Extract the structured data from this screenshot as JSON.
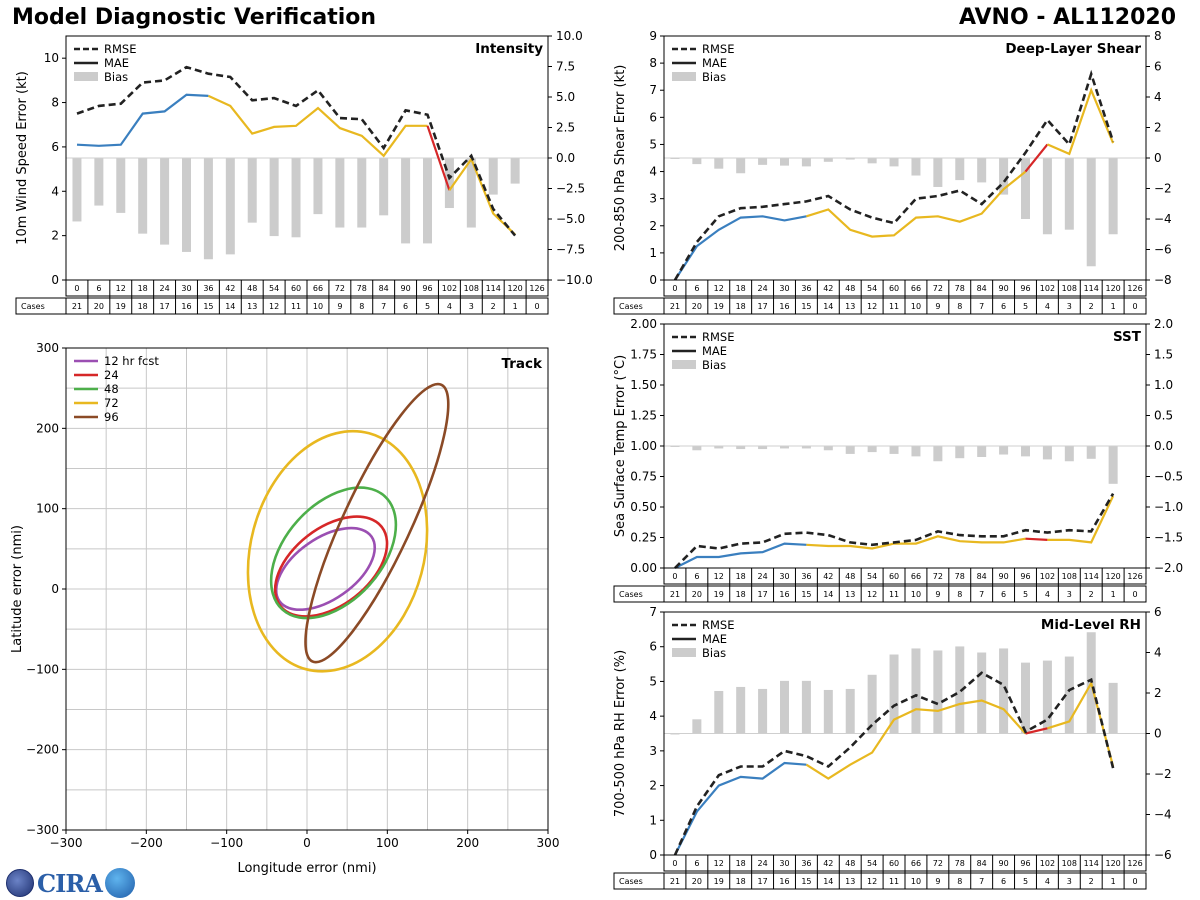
{
  "header": {
    "title_left": "Model Diagnostic Verification",
    "title_right": "AVNO - AL112020"
  },
  "logo": {
    "text": "CIRA"
  },
  "colors": {
    "rmse": "#222222",
    "bias": "#cccccc",
    "seg1": "#3a7fbf",
    "seg2": "#e8b820",
    "seg3": "#d62728",
    "grid": "#c8c8c8"
  },
  "table": {
    "hours": [
      "0",
      "6",
      "12",
      "18",
      "24",
      "30",
      "36",
      "42",
      "48",
      "54",
      "60",
      "66",
      "72",
      "78",
      "84",
      "90",
      "96",
      "102",
      "108",
      "114",
      "120",
      "126"
    ],
    "cases_label": "Cases"
  },
  "chart_data": [
    {
      "id": "intensity",
      "type": "line",
      "title": "Intensity",
      "ylabel": "10m Wind Speed Error (kt)",
      "ylim": [
        0,
        11
      ],
      "yticks": [
        "0",
        "2",
        "4",
        "6",
        "8",
        "10"
      ],
      "bias_lim": [
        -10,
        10
      ],
      "bias_ticks": [
        "−10.0",
        "−7.5",
        "−5.0",
        "−2.5",
        "0.0",
        "2.5",
        "5.0",
        "7.5",
        "10.0"
      ],
      "legend": [
        "RMSE",
        "MAE",
        "Bias"
      ],
      "rmse": [
        7.5,
        7.85,
        7.95,
        8.9,
        9.0,
        9.6,
        9.3,
        9.15,
        8.1,
        8.2,
        7.85,
        8.55,
        7.3,
        7.25,
        5.95,
        7.65,
        7.45,
        4.6,
        5.6,
        3.2,
        2.0
      ],
      "mae": [
        6.1,
        6.05,
        6.1,
        7.5,
        7.6,
        8.35,
        8.3,
        7.85,
        6.6,
        6.9,
        6.95,
        7.75,
        6.85,
        6.5,
        5.6,
        6.95,
        6.95,
        4.05,
        5.45,
        3.0,
        2.05
      ],
      "bias": [
        -5.2,
        -3.9,
        -4.5,
        -6.2,
        -7.1,
        -7.7,
        -8.3,
        -7.9,
        -5.3,
        -6.4,
        -6.5,
        -4.6,
        -5.7,
        -5.7,
        -4.7,
        -7.0,
        -7.0,
        -4.1,
        -5.7,
        -3.0,
        -2.1
      ],
      "cases": [
        "21",
        "20",
        "19",
        "18",
        "17",
        "16",
        "15",
        "14",
        "13",
        "12",
        "11",
        "10",
        "9",
        "8",
        "7",
        "6",
        "5",
        "4",
        "3",
        "2",
        "1",
        "0"
      ]
    },
    {
      "id": "shear",
      "type": "line",
      "title": "Deep-Layer Shear",
      "ylabel": "200-850 hPa Shear Error (kt)",
      "ylim": [
        0,
        9
      ],
      "yticks": [
        "0",
        "1",
        "2",
        "3",
        "4",
        "5",
        "6",
        "7",
        "8",
        "9"
      ],
      "bias_lim": [
        -8,
        8
      ],
      "bias_ticks": [
        "−8",
        "−6",
        "−4",
        "−2",
        "0",
        "2",
        "4",
        "6",
        "8"
      ],
      "legend": [
        "RMSE",
        "MAE",
        "Bias"
      ],
      "rmse": [
        0.0,
        1.4,
        2.35,
        2.65,
        2.7,
        2.8,
        2.9,
        3.1,
        2.6,
        2.3,
        2.1,
        3.0,
        3.1,
        3.3,
        2.8,
        3.6,
        4.7,
        5.9,
        5.0,
        7.6,
        5.1
      ],
      "mae": [
        0.0,
        1.25,
        1.85,
        2.3,
        2.35,
        2.2,
        2.35,
        2.6,
        1.85,
        1.6,
        1.65,
        2.3,
        2.35,
        2.15,
        2.45,
        3.35,
        4.0,
        5.0,
        4.65,
        7.0,
        5.05
      ],
      "bias": [
        -0.05,
        -0.4,
        -0.7,
        -1.0,
        -0.45,
        -0.5,
        -0.55,
        -0.25,
        -0.1,
        -0.35,
        -0.55,
        -1.15,
        -1.9,
        -1.45,
        -1.6,
        -2.4,
        -4.0,
        -5.0,
        -4.7,
        -7.1,
        -5.0
      ],
      "cases": [
        "21",
        "20",
        "19",
        "18",
        "17",
        "16",
        "15",
        "14",
        "13",
        "12",
        "11",
        "10",
        "9",
        "8",
        "7",
        "6",
        "5",
        "4",
        "3",
        "2",
        "1",
        "0"
      ]
    },
    {
      "id": "sst",
      "type": "line",
      "title": "SST",
      "ylabel": "Sea Surface Temp Error (°C)",
      "ylim": [
        0,
        2.0
      ],
      "yticks": [
        "0.00",
        "0.25",
        "0.50",
        "0.75",
        "1.00",
        "1.25",
        "1.50",
        "1.75",
        "2.00"
      ],
      "bias_lim": [
        -2.0,
        2.0
      ],
      "bias_ticks": [
        "−2.0",
        "−1.5",
        "−1.0",
        "−0.5",
        "0.0",
        "0.5",
        "1.0",
        "1.5",
        "2.0"
      ],
      "legend": [
        "RMSE",
        "MAE",
        "Bias"
      ],
      "rmse": [
        0.0,
        0.18,
        0.16,
        0.2,
        0.21,
        0.28,
        0.29,
        0.27,
        0.21,
        0.19,
        0.21,
        0.23,
        0.3,
        0.27,
        0.26,
        0.26,
        0.31,
        0.29,
        0.31,
        0.3,
        0.61
      ],
      "mae": [
        0.0,
        0.09,
        0.09,
        0.12,
        0.13,
        0.2,
        0.19,
        0.18,
        0.18,
        0.16,
        0.2,
        0.2,
        0.26,
        0.22,
        0.21,
        0.21,
        0.24,
        0.23,
        0.23,
        0.21,
        0.59
      ],
      "bias": [
        -0.01,
        -0.07,
        -0.04,
        -0.05,
        -0.05,
        -0.04,
        -0.04,
        -0.07,
        -0.13,
        -0.1,
        -0.13,
        -0.17,
        -0.25,
        -0.2,
        -0.18,
        -0.14,
        -0.17,
        -0.22,
        -0.25,
        -0.21,
        -0.62
      ],
      "cases": [
        "21",
        "20",
        "19",
        "18",
        "17",
        "16",
        "15",
        "14",
        "13",
        "12",
        "11",
        "10",
        "9",
        "8",
        "7",
        "6",
        "5",
        "4",
        "3",
        "2",
        "1",
        "0"
      ]
    },
    {
      "id": "rh",
      "type": "line",
      "title": "Mid-Level RH",
      "ylabel": "700-500 hPa RH Error (%)",
      "ylim": [
        0,
        7
      ],
      "yticks": [
        "0",
        "1",
        "2",
        "3",
        "4",
        "5",
        "6",
        "7"
      ],
      "bias_lim": [
        -6,
        6
      ],
      "bias_ticks": [
        "−6",
        "−4",
        "−2",
        "0",
        "2",
        "4",
        "6"
      ],
      "legend": [
        "RMSE",
        "MAE",
        "Bias"
      ],
      "rmse": [
        0.0,
        1.4,
        2.3,
        2.55,
        2.55,
        3.0,
        2.85,
        2.55,
        3.1,
        3.75,
        4.3,
        4.6,
        4.35,
        4.7,
        5.25,
        4.9,
        3.55,
        3.9,
        4.75,
        5.05,
        2.5
      ],
      "mae": [
        0.0,
        1.25,
        2.0,
        2.25,
        2.2,
        2.65,
        2.6,
        2.2,
        2.6,
        2.95,
        3.9,
        4.2,
        4.15,
        4.35,
        4.45,
        4.2,
        3.5,
        3.65,
        3.85,
        4.95,
        2.55
      ],
      "bias": [
        0.0,
        0.7,
        2.1,
        2.3,
        2.2,
        2.6,
        2.6,
        2.15,
        2.2,
        2.9,
        3.9,
        4.2,
        4.1,
        4.3,
        4.0,
        4.2,
        3.5,
        3.6,
        3.8,
        5.0,
        2.5
      ],
      "cases": [
        "21",
        "20",
        "19",
        "18",
        "17",
        "16",
        "15",
        "14",
        "13",
        "12",
        "11",
        "10",
        "9",
        "8",
        "7",
        "6",
        "5",
        "4",
        "3",
        "2",
        "1",
        "0"
      ]
    },
    {
      "id": "track",
      "type": "scatter",
      "title": "Track",
      "xlabel": "Longitude error (nmi)",
      "ylabel": "Latitude error (nmi)",
      "xlim": [
        -300,
        300
      ],
      "ylim": [
        -300,
        300
      ],
      "xticks": [
        "−300",
        "−200",
        "−100",
        "0",
        "100",
        "200",
        "300"
      ],
      "yticks": [
        "−300",
        "−200",
        "−100",
        "0",
        "100",
        "200",
        "300"
      ],
      "ellipses": [
        {
          "name": "12 hr fcst",
          "color": "#9b4fb2",
          "cx": 23,
          "cy": 25,
          "rx": 70,
          "ry": 38,
          "angle": 35
        },
        {
          "name": "24",
          "color": "#d62728",
          "cx": 30,
          "cy": 28,
          "rx": 80,
          "ry": 48,
          "angle": 38
        },
        {
          "name": "48",
          "color": "#4daf4a",
          "cx": 33,
          "cy": 45,
          "rx": 95,
          "ry": 60,
          "angle": 48
        },
        {
          "name": "72",
          "color": "#e8b820",
          "cx": 38,
          "cy": 47,
          "rx": 152,
          "ry": 108,
          "angle": 75
        },
        {
          "name": "96",
          "color": "#8b4a26",
          "cx": 87,
          "cy": 82,
          "rx": 190,
          "ry": 42,
          "angle": 65
        }
      ]
    }
  ]
}
